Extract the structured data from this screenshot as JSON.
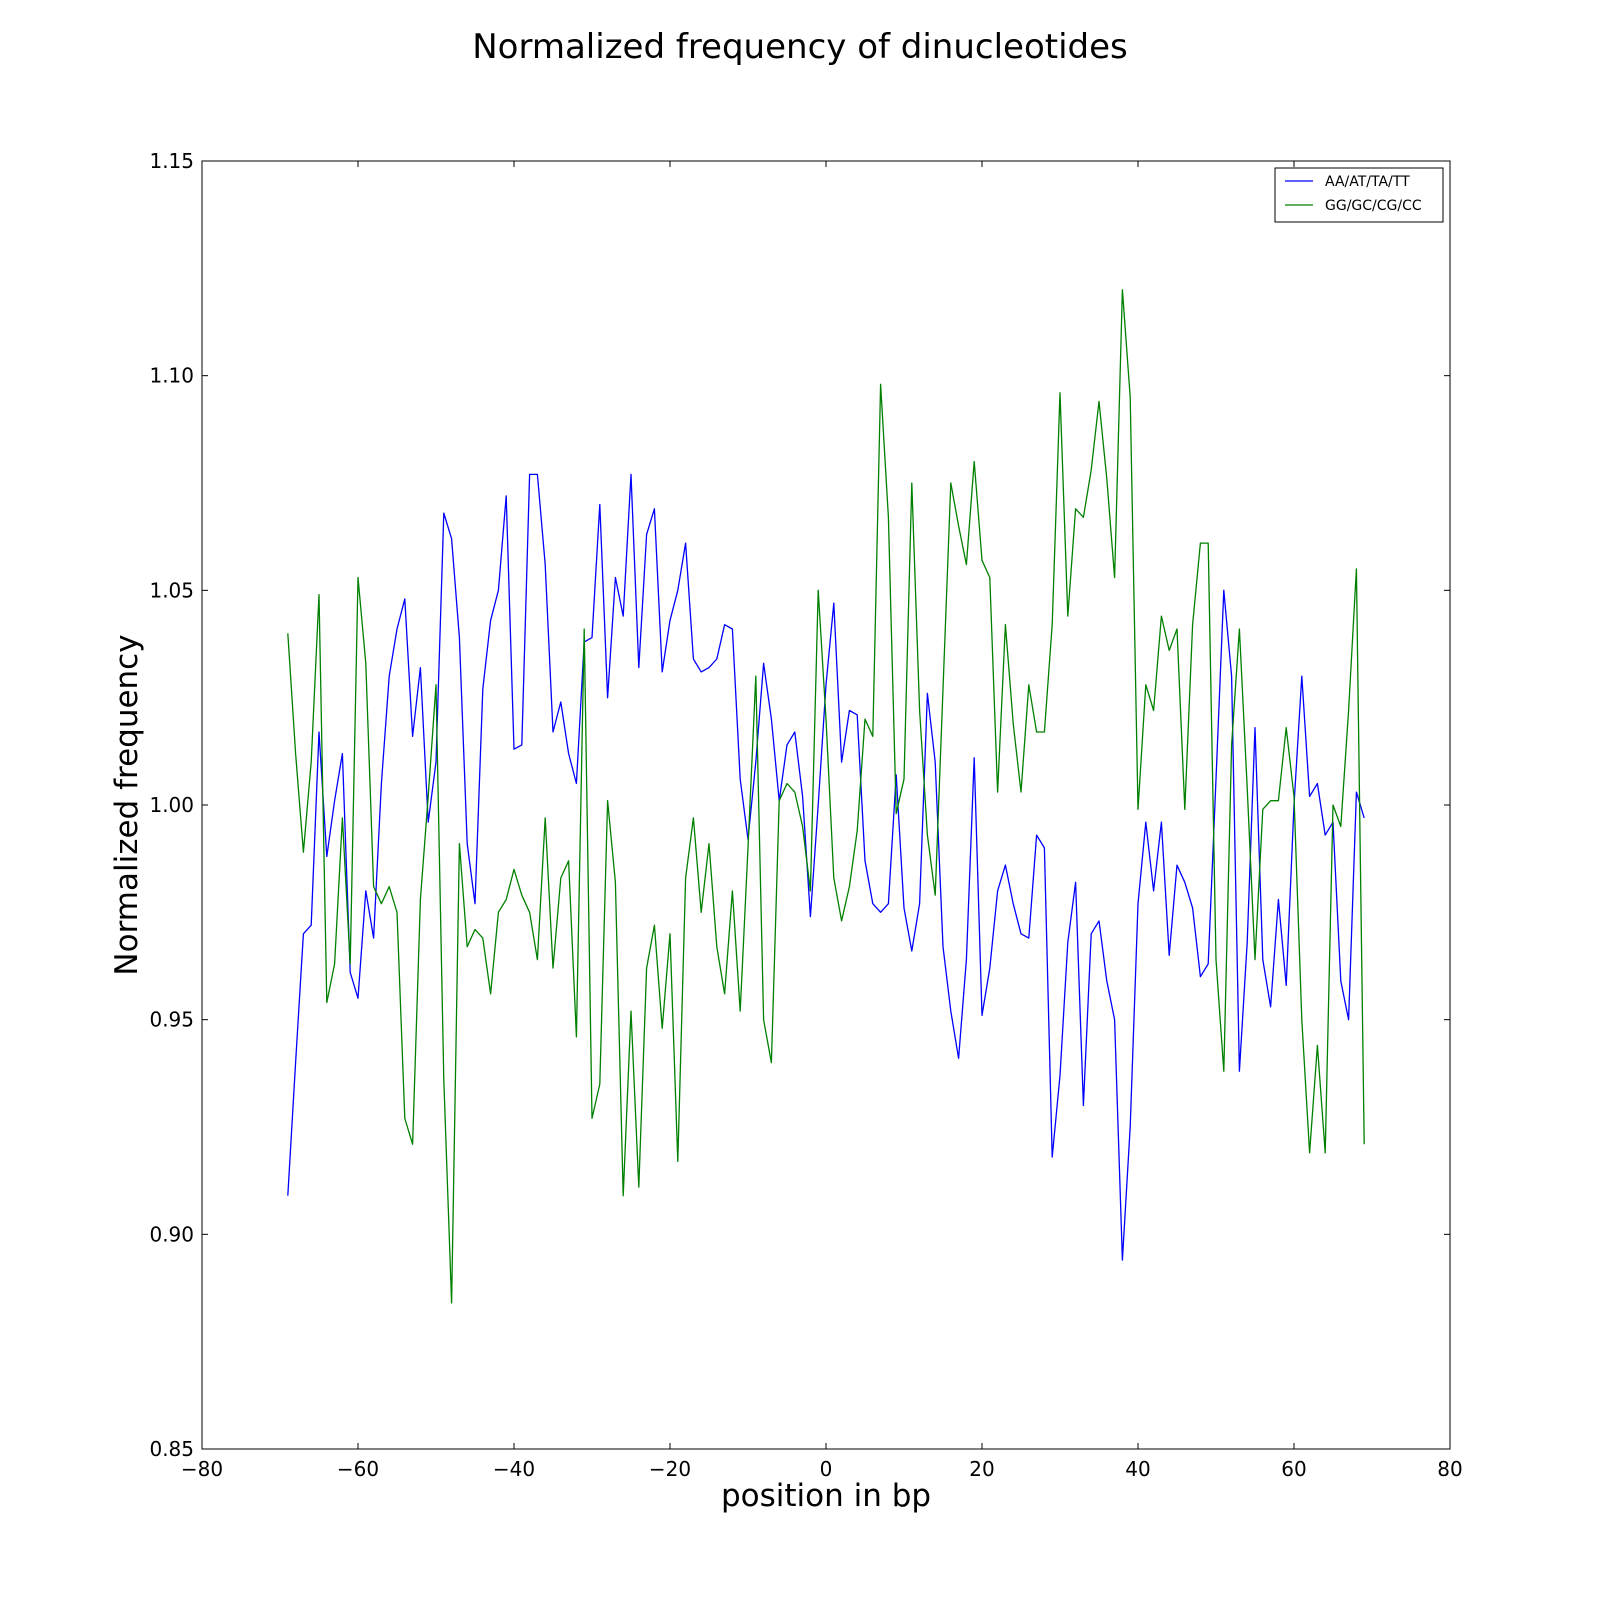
{
  "chart_data": {
    "type": "line",
    "title": "Normalized frequency of dinucleotides",
    "xlabel": "position in bp",
    "ylabel": "Normalized frequency",
    "xlim": [
      -80,
      80
    ],
    "ylim": [
      0.85,
      1.15
    ],
    "xticks": [
      -80,
      -60,
      -40,
      -20,
      0,
      20,
      40,
      60,
      80
    ],
    "xtick_labels": [
      "−80",
      "−60",
      "−40",
      "−20",
      "0",
      "20",
      "40",
      "60",
      "80"
    ],
    "yticks": [
      0.85,
      0.9,
      0.95,
      1.0,
      1.05,
      1.1,
      1.15
    ],
    "ytick_labels": [
      "0.85",
      "0.90",
      "0.95",
      "1.00",
      "1.05",
      "1.10",
      "1.15"
    ],
    "grid": false,
    "legend_position": "top-right",
    "x": [
      -69,
      -68,
      -67,
      -66,
      -65,
      -64,
      -63,
      -62,
      -61,
      -60,
      -59,
      -58,
      -57,
      -56,
      -55,
      -54,
      -53,
      -52,
      -51,
      -50,
      -49,
      -48,
      -47,
      -46,
      -45,
      -44,
      -43,
      -42,
      -41,
      -40,
      -39,
      -38,
      -37,
      -36,
      -35,
      -34,
      -33,
      -32,
      -31,
      -30,
      -29,
      -28,
      -27,
      -26,
      -25,
      -24,
      -23,
      -22,
      -21,
      -20,
      -19,
      -18,
      -17,
      -16,
      -15,
      -14,
      -13,
      -12,
      -11,
      -10,
      -9,
      -8,
      -7,
      -6,
      -5,
      -4,
      -3,
      -2,
      -1,
      0,
      1,
      2,
      3,
      4,
      5,
      6,
      7,
      8,
      9,
      10,
      11,
      12,
      13,
      14,
      15,
      16,
      17,
      18,
      19,
      20,
      21,
      22,
      23,
      24,
      25,
      26,
      27,
      28,
      29,
      30,
      31,
      32,
      33,
      34,
      35,
      36,
      37,
      38,
      39,
      40,
      41,
      42,
      43,
      44,
      45,
      46,
      47,
      48,
      49,
      50,
      51,
      52,
      53,
      54,
      55,
      56,
      57,
      58,
      59,
      60,
      61,
      62,
      63,
      64,
      65,
      66,
      67,
      68,
      69
    ],
    "series": [
      {
        "name": "AA/AT/TA/TT",
        "color": "#0000ff",
        "values": [
          0.909,
          0.94,
          0.97,
          0.972,
          1.017,
          0.988,
          1.001,
          1.012,
          0.961,
          0.955,
          0.98,
          0.969,
          1.005,
          1.03,
          1.041,
          1.048,
          1.016,
          1.032,
          0.996,
          1.01,
          1.068,
          1.062,
          1.039,
          0.991,
          0.977,
          1.027,
          1.043,
          1.05,
          1.072,
          1.013,
          1.014,
          1.077,
          1.077,
          1.056,
          1.017,
          1.024,
          1.012,
          1.005,
          1.038,
          1.039,
          1.07,
          1.025,
          1.053,
          1.044,
          1.077,
          1.032,
          1.063,
          1.069,
          1.031,
          1.043,
          1.05,
          1.061,
          1.034,
          1.031,
          1.032,
          1.034,
          1.042,
          1.041,
          1.006,
          0.992,
          1.01,
          1.033,
          1.02,
          1.001,
          1.014,
          1.017,
          1.002,
          0.974,
          1.0,
          1.028,
          1.047,
          1.01,
          1.022,
          1.021,
          0.987,
          0.977,
          0.975,
          0.977,
          1.007,
          0.976,
          0.966,
          0.977,
          1.026,
          1.01,
          0.967,
          0.952,
          0.941,
          0.964,
          1.011,
          0.951,
          0.962,
          0.98,
          0.986,
          0.977,
          0.97,
          0.969,
          0.993,
          0.99,
          0.918,
          0.937,
          0.968,
          0.982,
          0.93,
          0.97,
          0.973,
          0.959,
          0.95,
          0.894,
          0.925,
          0.977,
          0.996,
          0.98,
          0.996,
          0.965,
          0.986,
          0.982,
          0.976,
          0.96,
          0.963,
          1.006,
          1.05,
          1.03,
          0.938,
          0.968,
          1.018,
          0.964,
          0.953,
          0.978,
          0.958,
          1.0,
          1.03,
          1.002,
          1.005,
          0.993,
          0.996,
          0.959,
          0.95,
          1.003,
          0.997
        ]
      },
      {
        "name": "GG/GC/CG/CC",
        "color": "#008000",
        "values": [
          1.04,
          1.012,
          0.989,
          1.01,
          1.049,
          0.954,
          0.963,
          0.997,
          0.963,
          1.053,
          1.033,
          0.981,
          0.977,
          0.981,
          0.975,
          0.927,
          0.921,
          0.978,
          1.002,
          1.028,
          0.936,
          0.884,
          0.991,
          0.967,
          0.971,
          0.969,
          0.956,
          0.975,
          0.978,
          0.985,
          0.979,
          0.975,
          0.964,
          0.997,
          0.962,
          0.983,
          0.987,
          0.946,
          1.041,
          0.927,
          0.935,
          1.001,
          0.982,
          0.909,
          0.952,
          0.911,
          0.962,
          0.972,
          0.948,
          0.97,
          0.917,
          0.983,
          0.997,
          0.975,
          0.991,
          0.967,
          0.956,
          0.98,
          0.952,
          0.99,
          1.03,
          0.95,
          0.94,
          1.001,
          1.005,
          1.003,
          0.995,
          0.98,
          1.05,
          1.02,
          0.983,
          0.973,
          0.981,
          0.994,
          1.02,
          1.016,
          1.098,
          1.067,
          0.998,
          1.006,
          1.075,
          1.022,
          0.993,
          0.979,
          1.027,
          1.075,
          1.065,
          1.056,
          1.08,
          1.057,
          1.053,
          1.003,
          1.042,
          1.019,
          1.003,
          1.028,
          1.017,
          1.017,
          1.042,
          1.096,
          1.044,
          1.069,
          1.067,
          1.078,
          1.094,
          1.076,
          1.053,
          1.12,
          1.095,
          0.999,
          1.028,
          1.022,
          1.044,
          1.036,
          1.041,
          0.999,
          1.042,
          1.061,
          1.061,
          0.964,
          0.938,
          1.014,
          1.041,
          1.004,
          0.964,
          0.999,
          1.001,
          1.001,
          1.018,
          1.002,
          0.95,
          0.919,
          0.944,
          0.919,
          1.0,
          0.995,
          1.022,
          1.055,
          0.921
        ]
      }
    ]
  }
}
